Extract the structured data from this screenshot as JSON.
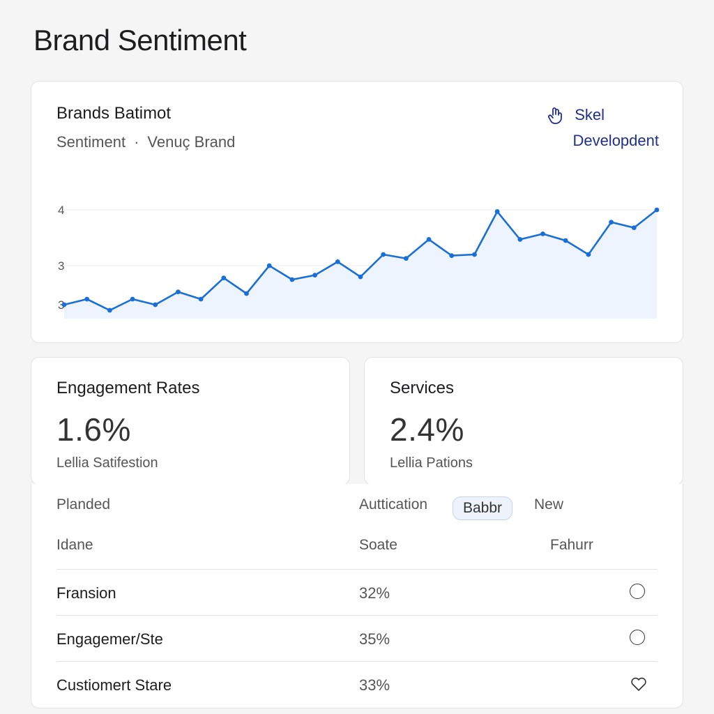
{
  "page": {
    "title": "Brand Sentiment"
  },
  "chart_card": {
    "title": "Brands Batimot",
    "subtitle_left": "Sentiment",
    "subtitle_sep": "·",
    "subtitle_right": "Venuç Brand",
    "link_label": "Skel",
    "link_icon": "hand-pointer-icon",
    "secondary_link": "Developdent",
    "accent_color": "#1a6fd6",
    "fill_color": "#eef4fd"
  },
  "chart_data": {
    "type": "area",
    "title": "Brands Batimot",
    "xlabel": "",
    "ylabel": "",
    "y_ticks": [
      "4",
      "3",
      "3"
    ],
    "ylim": [
      2.05,
      4.3
    ],
    "grid": true,
    "legend": "none",
    "series": [
      {
        "values": [
          2.3,
          2.4,
          2.2,
          2.4,
          2.3,
          2.53,
          2.4,
          2.78,
          2.5,
          3.0,
          2.75,
          2.83,
          3.07,
          2.8,
          3.2,
          3.13,
          3.47,
          3.18,
          3.2,
          3.97,
          3.47,
          3.57,
          3.45,
          3.2,
          3.78,
          3.68,
          4.0
        ]
      }
    ]
  },
  "stats": [
    {
      "title": "Engagement Rates",
      "value": "1.6%",
      "caption": "Lellia Satifestion"
    },
    {
      "title": "Services",
      "value": "2.4%",
      "caption": "Lellia Pations"
    }
  ],
  "table": {
    "toolbar": {
      "left": "Planded",
      "filter_label": "Auttication",
      "pill": "Babbr",
      "new_label": "New"
    },
    "columns": [
      "Idane",
      "Soate",
      "Fahurr"
    ],
    "rows": [
      {
        "name": "Fransion",
        "value": "32%",
        "icon": "circle-icon"
      },
      {
        "name": "Engagemer/Ste",
        "value": "35%",
        "icon": "circle-icon"
      },
      {
        "name": "Custiomert Stare",
        "value": "33%",
        "icon": "heart-icon"
      }
    ]
  }
}
